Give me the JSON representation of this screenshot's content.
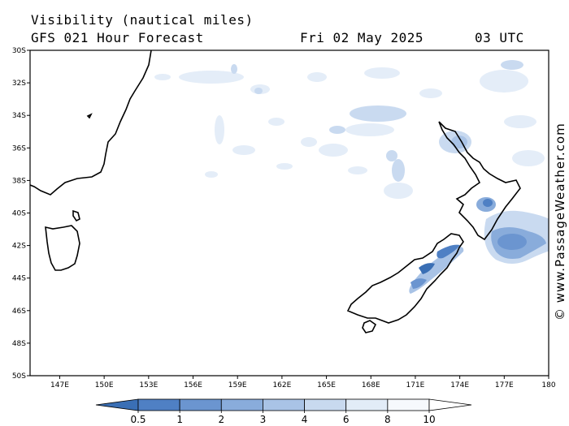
{
  "header": {
    "title": "Visibility (nautical miles)",
    "model": "GFS 021 Hour Forecast",
    "date": "Fri 02 May 2025",
    "time": "03 UTC"
  },
  "credit": "© www.PassageWeather.com",
  "map": {
    "lat_range": [
      -50,
      -30
    ],
    "lon_range": [
      145,
      180
    ],
    "lat_ticks": [
      {
        "value": -30,
        "label": "30S"
      },
      {
        "value": -32,
        "label": "32S"
      },
      {
        "value": -34,
        "label": "34S"
      },
      {
        "value": -36,
        "label": "36S"
      },
      {
        "value": -38,
        "label": "38S"
      },
      {
        "value": -40,
        "label": "40S"
      },
      {
        "value": -42,
        "label": "42S"
      },
      {
        "value": -44,
        "label": "44S"
      },
      {
        "value": -46,
        "label": "46S"
      },
      {
        "value": -48,
        "label": "48S"
      },
      {
        "value": -50,
        "label": "50S"
      }
    ],
    "lon_ticks": [
      {
        "value": 147,
        "label": "147E"
      },
      {
        "value": 150,
        "label": "150E"
      },
      {
        "value": 153,
        "label": "153E"
      },
      {
        "value": 156,
        "label": "156E"
      },
      {
        "value": 159,
        "label": "159E"
      },
      {
        "value": 162,
        "label": "162E"
      },
      {
        "value": 165,
        "label": "165E"
      },
      {
        "value": 168,
        "label": "168E"
      },
      {
        "value": 171,
        "label": "171E"
      },
      {
        "value": 174,
        "label": "174E"
      },
      {
        "value": 177,
        "label": "177E"
      },
      {
        "value": 180,
        "label": "180"
      }
    ]
  },
  "legend": {
    "levels": [
      "0.5",
      "1",
      "2",
      "3",
      "4",
      "6",
      "8",
      "10"
    ],
    "colors": [
      "#3a6fb5",
      "#4f80c4",
      "#6b95d0",
      "#89acdb",
      "#a9c3e6",
      "#c8d9ef",
      "#e2ecf7",
      "#f6f9fd",
      "#ffffff"
    ]
  }
}
